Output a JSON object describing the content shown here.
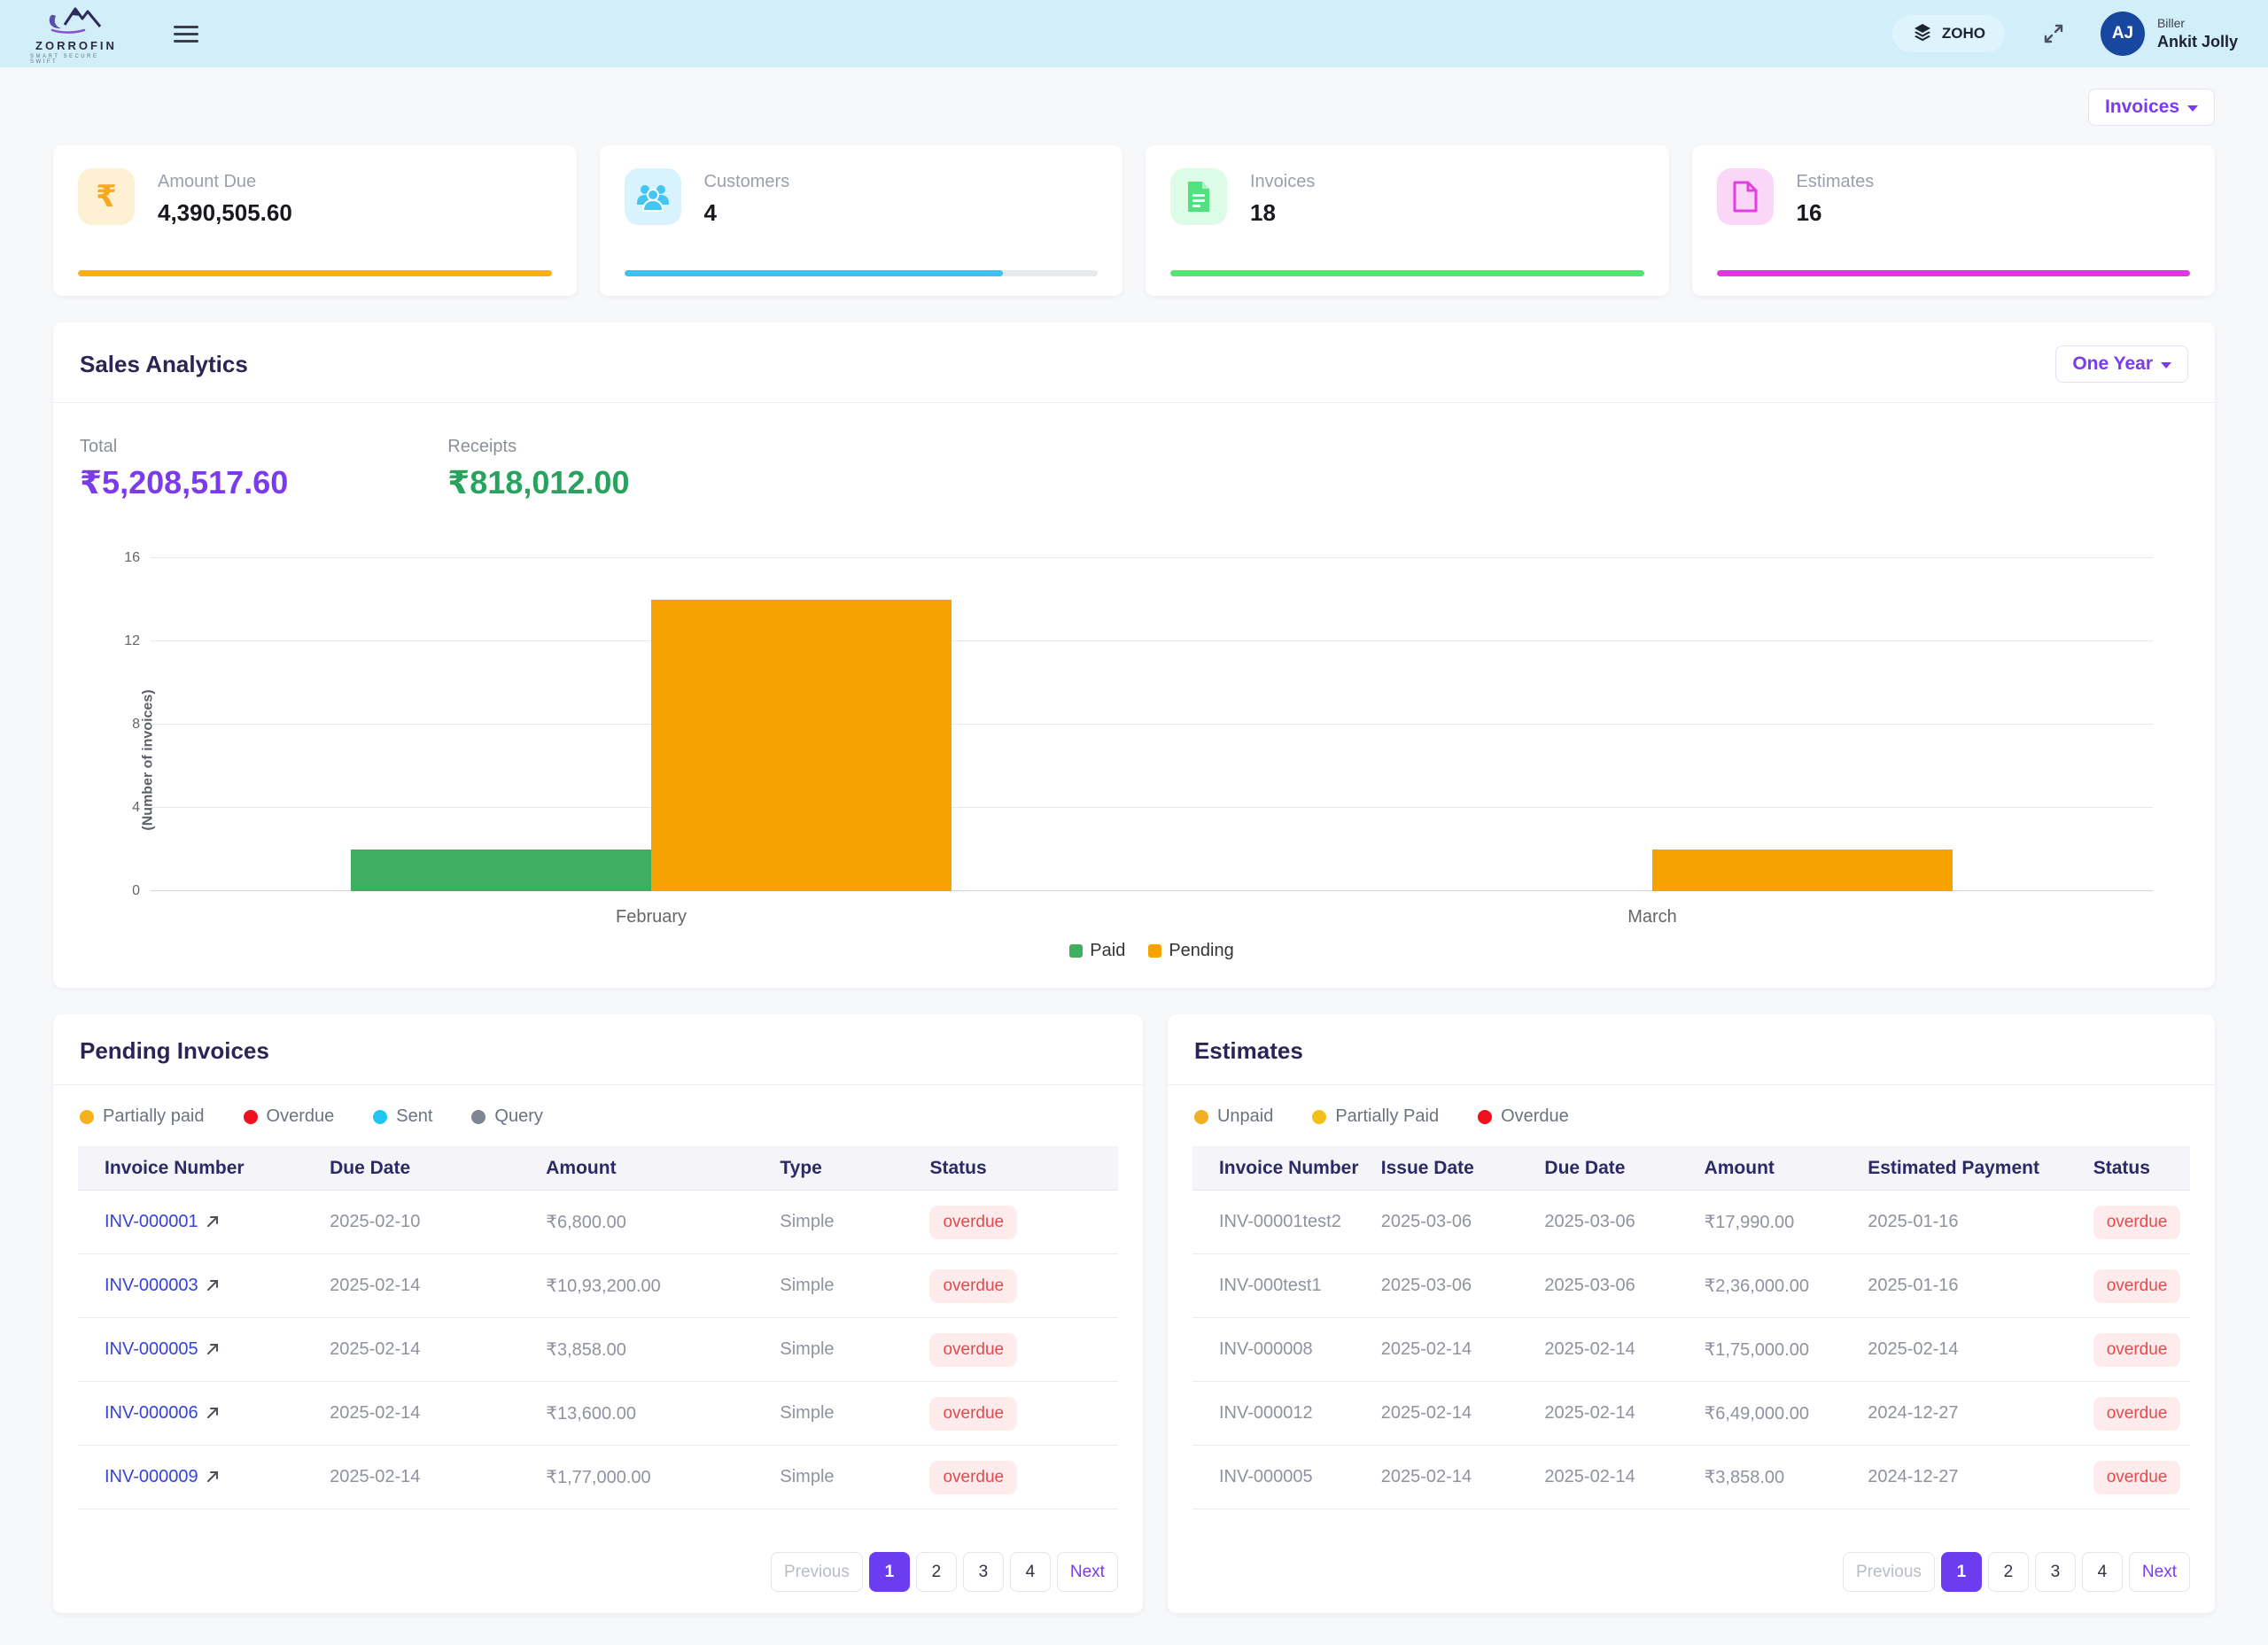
{
  "topbar": {
    "brand": {
      "name": "ZORROFIN",
      "tagline": "SMART SECURE SWIFT"
    },
    "zoho_label": "ZOHO",
    "user": {
      "role": "Biller",
      "name": "Ankit Jolly",
      "initials": "AJ"
    }
  },
  "page": {
    "entity_selector": "Invoices"
  },
  "stat_cards": [
    {
      "label": "Amount Due",
      "value": "4,390,505.60",
      "icon": "rupee-icon",
      "accent": "#f7a823",
      "icon_bg": "#fdf0d3",
      "bar_color": "#fbaf17",
      "progress": 100
    },
    {
      "label": "Customers",
      "value": "4",
      "icon": "customers-icon",
      "accent": "#45c5f1",
      "icon_bg": "#d8f3fd",
      "bar_color": "#3fc0ee",
      "progress": 80
    },
    {
      "label": "Invoices",
      "value": "18",
      "icon": "invoice-icon",
      "accent": "#53e07e",
      "icon_bg": "#dcfce7",
      "bar_color": "#52e572",
      "progress": 100
    },
    {
      "label": "Estimates",
      "value": "16",
      "icon": "estimate-icon",
      "accent": "#e33ee0",
      "icon_bg": "#fbd7f7",
      "bar_color": "#e135e0",
      "progress": 100
    }
  ],
  "sales_analytics": {
    "title": "Sales Analytics",
    "period_selector": "One Year",
    "total": {
      "label": "Total",
      "value": "₹5,208,517.60",
      "color": "#7c3aed"
    },
    "receipts": {
      "label": "Receipts",
      "value": "₹818,012.00",
      "color": "#27a35e"
    }
  },
  "chart_data": {
    "type": "bar",
    "categories": [
      "February",
      "March"
    ],
    "series": [
      {
        "name": "Paid",
        "color": "#3fae60",
        "values": [
          2,
          0
        ]
      },
      {
        "name": "Pending",
        "color": "#f6a302",
        "values": [
          14,
          2
        ]
      }
    ],
    "title": "",
    "xlabel": "",
    "ylabel": "(Number of invoices)",
    "yticks": [
      0,
      4,
      8,
      12,
      16
    ],
    "ylim": [
      0,
      16
    ],
    "grid": true,
    "legend_position": "bottom"
  },
  "pending_invoices": {
    "title": "Pending Invoices",
    "legend": [
      {
        "label": "Partially paid",
        "color": "#f2b31c"
      },
      {
        "label": "Overdue",
        "color": "#f2101f"
      },
      {
        "label": "Sent",
        "color": "#1fc6f0"
      },
      {
        "label": "Query",
        "color": "#808593"
      }
    ],
    "columns": [
      "Invoice Number",
      "Due Date",
      "Amount",
      "Type",
      "Status"
    ],
    "rows": [
      {
        "invoice": "INV-000001",
        "due": "2025-02-10",
        "amount": "₹6,800.00",
        "type": "Simple",
        "status": "overdue"
      },
      {
        "invoice": "INV-000003",
        "due": "2025-02-14",
        "amount": "₹10,93,200.00",
        "type": "Simple",
        "status": "overdue"
      },
      {
        "invoice": "INV-000005",
        "due": "2025-02-14",
        "amount": "₹3,858.00",
        "type": "Simple",
        "status": "overdue"
      },
      {
        "invoice": "INV-000006",
        "due": "2025-02-14",
        "amount": "₹13,600.00",
        "type": "Simple",
        "status": "overdue"
      },
      {
        "invoice": "INV-000009",
        "due": "2025-02-14",
        "amount": "₹1,77,000.00",
        "type": "Simple",
        "status": "overdue"
      }
    ],
    "pagination": {
      "previous": "Previous",
      "pages": [
        "1",
        "2",
        "3",
        "4"
      ],
      "active": "1",
      "next": "Next"
    }
  },
  "estimates": {
    "title": "Estimates",
    "legend": [
      {
        "label": "Unpaid",
        "color": "#f0b021"
      },
      {
        "label": "Partially Paid",
        "color": "#f2c019"
      },
      {
        "label": "Overdue",
        "color": "#f2101f"
      }
    ],
    "columns": [
      "Invoice Number",
      "Issue Date",
      "Due Date",
      "Amount",
      "Estimated Payment",
      "Status"
    ],
    "rows": [
      {
        "invoice": "INV-00001test2",
        "issue": "2025-03-06",
        "due": "2025-03-06",
        "amount": "₹17,990.00",
        "estimated": "2025-01-16",
        "status": "overdue"
      },
      {
        "invoice": "INV-000test1",
        "issue": "2025-03-06",
        "due": "2025-03-06",
        "amount": "₹2,36,000.00",
        "estimated": "2025-01-16",
        "status": "overdue"
      },
      {
        "invoice": "INV-000008",
        "issue": "2025-02-14",
        "due": "2025-02-14",
        "amount": "₹1,75,000.00",
        "estimated": "2025-02-14",
        "status": "overdue"
      },
      {
        "invoice": "INV-000012",
        "issue": "2025-02-14",
        "due": "2025-02-14",
        "amount": "₹6,49,000.00",
        "estimated": "2024-12-27",
        "status": "overdue"
      },
      {
        "invoice": "INV-000005",
        "issue": "2025-02-14",
        "due": "2025-02-14",
        "amount": "₹3,858.00",
        "estimated": "2024-12-27",
        "status": "overdue"
      }
    ],
    "pagination": {
      "previous": "Previous",
      "pages": [
        "1",
        "2",
        "3",
        "4"
      ],
      "active": "1",
      "next": "Next"
    }
  }
}
